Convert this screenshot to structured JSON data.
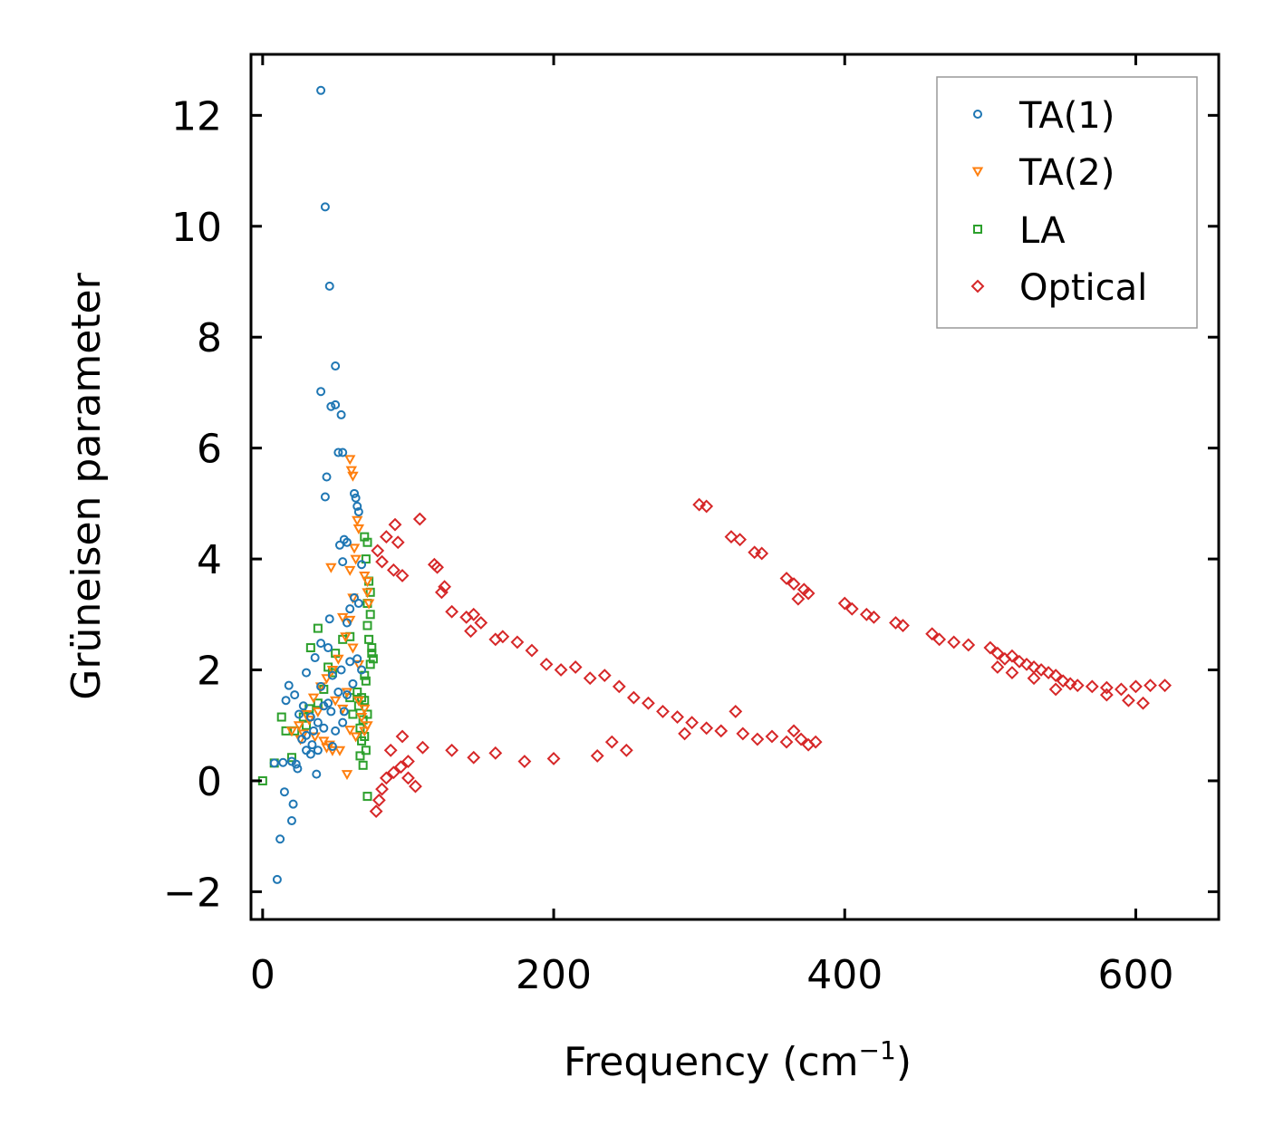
{
  "chart_data": {
    "type": "scatter",
    "xlabel": "Frequency (cm",
    "xlabel_sup": "−1",
    "xlabel_close": ")",
    "ylabel": "Grüneisen parameter",
    "xlim": [
      -8,
      657
    ],
    "ylim": [
      -2.5,
      13.1
    ],
    "xticks": [
      0,
      200,
      400,
      600
    ],
    "xtick_labels": [
      "0",
      "200",
      "400",
      "600"
    ],
    "yticks": [
      -2,
      0,
      2,
      4,
      6,
      8,
      10,
      12
    ],
    "ytick_labels": [
      "−2",
      "0",
      "2",
      "4",
      "6",
      "8",
      "10",
      "12"
    ],
    "legend_position": "top-right",
    "grid": false,
    "series": [
      {
        "name": "TA(1)",
        "marker": "circle",
        "color": "#1f77b4",
        "points": [
          [
            40,
            12.45
          ],
          [
            43,
            10.35
          ],
          [
            46,
            8.92
          ],
          [
            50,
            7.48
          ],
          [
            40,
            7.02
          ],
          [
            47,
            6.75
          ],
          [
            50,
            6.78
          ],
          [
            54,
            6.6
          ],
          [
            52,
            5.92
          ],
          [
            55,
            5.92
          ],
          [
            44,
            5.48
          ],
          [
            43,
            5.12
          ],
          [
            63,
            5.18
          ],
          [
            64,
            5.1
          ],
          [
            65,
            4.95
          ],
          [
            66,
            4.85
          ],
          [
            56,
            4.35
          ],
          [
            53,
            4.25
          ],
          [
            58,
            4.3
          ],
          [
            55,
            3.95
          ],
          [
            68,
            3.9
          ],
          [
            60,
            3.1
          ],
          [
            63,
            3.3
          ],
          [
            66,
            3.2
          ],
          [
            58,
            2.85
          ],
          [
            46,
            2.92
          ],
          [
            36,
            2.22
          ],
          [
            40,
            2.48
          ],
          [
            45,
            2.4
          ],
          [
            60,
            2.15
          ],
          [
            65,
            2.2
          ],
          [
            68,
            2.0
          ],
          [
            30,
            1.95
          ],
          [
            18,
            1.72
          ],
          [
            22,
            1.55
          ],
          [
            16,
            1.45
          ],
          [
            28,
            1.35
          ],
          [
            25,
            1.2
          ],
          [
            33,
            1.15
          ],
          [
            38,
            1.05
          ],
          [
            42,
            0.95
          ],
          [
            35,
            0.9
          ],
          [
            30,
            0.82
          ],
          [
            27,
            0.75
          ],
          [
            34,
            0.65
          ],
          [
            30,
            0.55
          ],
          [
            38,
            0.55
          ],
          [
            33,
            0.48
          ],
          [
            20,
            0.35
          ],
          [
            23,
            0.3
          ],
          [
            24,
            0.22
          ],
          [
            14,
            0.33
          ],
          [
            8,
            0.32
          ],
          [
            37,
            0.12
          ],
          [
            48,
            0.62
          ],
          [
            50,
            0.9
          ],
          [
            55,
            1.05
          ],
          [
            45,
            1.4
          ],
          [
            52,
            1.6
          ],
          [
            58,
            1.55
          ],
          [
            62,
            1.75
          ],
          [
            47,
            1.25
          ],
          [
            56,
            1.25
          ],
          [
            40,
            1.7
          ],
          [
            15,
            -0.2
          ],
          [
            21,
            -0.42
          ],
          [
            20,
            -0.72
          ],
          [
            12,
            -1.05
          ],
          [
            10,
            -1.78
          ],
          [
            48,
            1.9
          ],
          [
            42,
            1.35
          ],
          [
            54,
            2.0
          ]
        ]
      },
      {
        "name": "TA(2)",
        "marker": "triangle",
        "color": "#ff7f0e",
        "points": [
          [
            60,
            5.8
          ],
          [
            61,
            5.6
          ],
          [
            62,
            5.5
          ],
          [
            65,
            4.7
          ],
          [
            66,
            4.55
          ],
          [
            63,
            4.2
          ],
          [
            64,
            4.0
          ],
          [
            60,
            3.8
          ],
          [
            47,
            3.85
          ],
          [
            70,
            3.7
          ],
          [
            72,
            3.4
          ],
          [
            72,
            3.6
          ],
          [
            73,
            3.2
          ],
          [
            62,
            3.3
          ],
          [
            60,
            2.9
          ],
          [
            55,
            2.95
          ],
          [
            57,
            2.6
          ],
          [
            62,
            2.4
          ],
          [
            66,
            2.1
          ],
          [
            52,
            2.2
          ],
          [
            48,
            2.0
          ],
          [
            44,
            1.85
          ],
          [
            40,
            1.7
          ],
          [
            35,
            1.5
          ],
          [
            30,
            1.2
          ],
          [
            25,
            1.0
          ],
          [
            20,
            0.9
          ],
          [
            28,
            0.85
          ],
          [
            36,
            0.8
          ],
          [
            42,
            0.72
          ],
          [
            46,
            0.65
          ],
          [
            48,
            0.55
          ],
          [
            60,
            0.92
          ],
          [
            64,
            0.8
          ],
          [
            70,
            0.9
          ],
          [
            68,
            1.15
          ],
          [
            72,
            1.0
          ],
          [
            55,
            1.3
          ],
          [
            50,
            1.45
          ],
          [
            58,
            1.6
          ],
          [
            38,
            1.25
          ],
          [
            32,
            1.1
          ],
          [
            26,
            0.75
          ],
          [
            58,
            0.12
          ],
          [
            53,
            0.55
          ],
          [
            44,
            0.6
          ],
          [
            66,
            1.45
          ],
          [
            70,
            1.3
          ]
        ]
      },
      {
        "name": "LA",
        "marker": "square",
        "color": "#2ca02c",
        "points": [
          [
            70,
            4.4
          ],
          [
            72,
            4.3
          ],
          [
            71,
            4.0
          ],
          [
            73,
            3.6
          ],
          [
            74,
            3.4
          ],
          [
            72,
            3.2
          ],
          [
            74,
            3.0
          ],
          [
            72,
            2.8
          ],
          [
            73,
            2.55
          ],
          [
            75,
            2.4
          ],
          [
            75,
            2.3
          ],
          [
            76,
            2.2
          ],
          [
            74,
            2.1
          ],
          [
            70,
            1.9
          ],
          [
            71,
            1.8
          ],
          [
            65,
            1.6
          ],
          [
            68,
            1.5
          ],
          [
            70,
            1.45
          ],
          [
            72,
            1.2
          ],
          [
            69,
            1.1
          ],
          [
            67,
            0.95
          ],
          [
            70,
            0.8
          ],
          [
            68,
            0.72
          ],
          [
            71,
            0.55
          ],
          [
            67,
            0.45
          ],
          [
            69,
            0.28
          ],
          [
            72,
            -0.28
          ],
          [
            38,
            2.75
          ],
          [
            33,
            2.4
          ],
          [
            55,
            2.55
          ],
          [
            50,
            2.3
          ],
          [
            60,
            2.6
          ],
          [
            45,
            2.05
          ],
          [
            48,
            1.95
          ],
          [
            42,
            1.65
          ],
          [
            38,
            1.4
          ],
          [
            32,
            1.3
          ],
          [
            28,
            1.15
          ],
          [
            22,
            0.9
          ],
          [
            30,
            1.0
          ],
          [
            16,
            0.9
          ],
          [
            13,
            1.15
          ],
          [
            20,
            0.42
          ],
          [
            8,
            0.32
          ],
          [
            0,
            0.0
          ],
          [
            60,
            1.5
          ],
          [
            62,
            1.2
          ],
          [
            66,
            1.35
          ]
        ]
      },
      {
        "name": "Optical",
        "marker": "diamond",
        "color": "#d62728",
        "points": [
          [
            108,
            4.72
          ],
          [
            91,
            4.62
          ],
          [
            85,
            4.4
          ],
          [
            93,
            4.3
          ],
          [
            79,
            4.15
          ],
          [
            82,
            3.95
          ],
          [
            90,
            3.8
          ],
          [
            96,
            3.7
          ],
          [
            118,
            3.9
          ],
          [
            120,
            3.85
          ],
          [
            125,
            3.5
          ],
          [
            123,
            3.4
          ],
          [
            130,
            3.05
          ],
          [
            140,
            2.95
          ],
          [
            145,
            3.0
          ],
          [
            150,
            2.85
          ],
          [
            143,
            2.7
          ],
          [
            160,
            2.55
          ],
          [
            165,
            2.6
          ],
          [
            175,
            2.5
          ],
          [
            185,
            2.35
          ],
          [
            195,
            2.1
          ],
          [
            205,
            2.0
          ],
          [
            215,
            2.05
          ],
          [
            225,
            1.85
          ],
          [
            235,
            1.9
          ],
          [
            245,
            1.7
          ],
          [
            255,
            1.5
          ],
          [
            265,
            1.4
          ],
          [
            275,
            1.25
          ],
          [
            285,
            1.15
          ],
          [
            295,
            1.05
          ],
          [
            305,
            0.95
          ],
          [
            315,
            0.9
          ],
          [
            325,
            1.25
          ],
          [
            330,
            0.85
          ],
          [
            340,
            0.75
          ],
          [
            350,
            0.8
          ],
          [
            360,
            0.7
          ],
          [
            365,
            0.9
          ],
          [
            370,
            0.75
          ],
          [
            375,
            0.65
          ],
          [
            380,
            0.7
          ],
          [
            290,
            0.85
          ],
          [
            250,
            0.55
          ],
          [
            240,
            0.7
          ],
          [
            230,
            0.45
          ],
          [
            200,
            0.4
          ],
          [
            180,
            0.35
          ],
          [
            160,
            0.5
          ],
          [
            145,
            0.42
          ],
          [
            130,
            0.55
          ],
          [
            110,
            0.6
          ],
          [
            100,
            0.35
          ],
          [
            95,
            0.25
          ],
          [
            90,
            0.15
          ],
          [
            85,
            0.05
          ],
          [
            82,
            -0.15
          ],
          [
            80,
            -0.35
          ],
          [
            78,
            -0.55
          ],
          [
            105,
            -0.1
          ],
          [
            100,
            0.05
          ],
          [
            88,
            0.55
          ],
          [
            96,
            0.8
          ],
          [
            300,
            4.98
          ],
          [
            305,
            4.95
          ],
          [
            322,
            4.4
          ],
          [
            328,
            4.35
          ],
          [
            338,
            4.12
          ],
          [
            343,
            4.1
          ],
          [
            360,
            3.65
          ],
          [
            365,
            3.55
          ],
          [
            372,
            3.45
          ],
          [
            375,
            3.38
          ],
          [
            368,
            3.28
          ],
          [
            400,
            3.2
          ],
          [
            405,
            3.1
          ],
          [
            415,
            3.0
          ],
          [
            420,
            2.95
          ],
          [
            435,
            2.85
          ],
          [
            440,
            2.8
          ],
          [
            460,
            2.65
          ],
          [
            465,
            2.55
          ],
          [
            475,
            2.5
          ],
          [
            485,
            2.45
          ],
          [
            500,
            2.4
          ],
          [
            505,
            2.3
          ],
          [
            510,
            2.2
          ],
          [
            515,
            2.25
          ],
          [
            520,
            2.15
          ],
          [
            525,
            2.1
          ],
          [
            530,
            2.05
          ],
          [
            535,
            2.0
          ],
          [
            540,
            1.95
          ],
          [
            545,
            1.9
          ],
          [
            550,
            1.8
          ],
          [
            555,
            1.75
          ],
          [
            560,
            1.72
          ],
          [
            570,
            1.7
          ],
          [
            580,
            1.68
          ],
          [
            590,
            1.65
          ],
          [
            600,
            1.7
          ],
          [
            610,
            1.72
          ],
          [
            620,
            1.72
          ],
          [
            580,
            1.55
          ],
          [
            595,
            1.45
          ],
          [
            605,
            1.4
          ],
          [
            545,
            1.65
          ],
          [
            530,
            1.85
          ],
          [
            515,
            1.95
          ],
          [
            505,
            2.05
          ]
        ]
      }
    ]
  }
}
